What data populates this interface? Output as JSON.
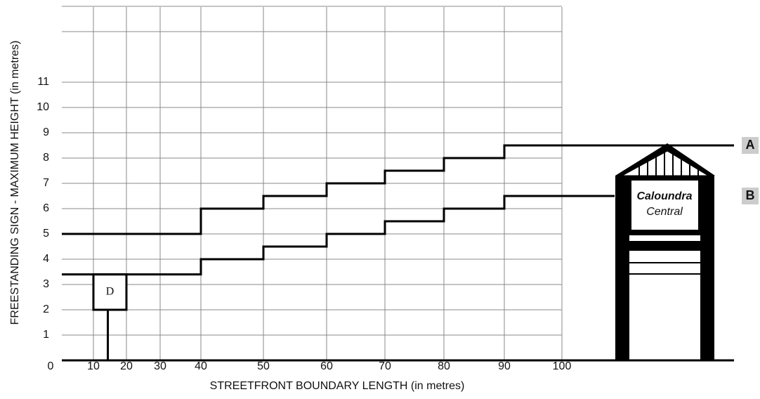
{
  "chart_data": {
    "type": "step",
    "x_label": "STREETFRONT BOUNDARY LENGTH (in metres)",
    "y_label": "FREESTANDING SIGN - MAXIMUM HEIGHT (in metres)",
    "x": [
      0,
      40,
      50,
      60,
      70,
      80,
      90
    ],
    "series": [
      {
        "name": "A",
        "color": "#000000",
        "values": [
          5,
          6,
          6.5,
          7,
          7.5,
          8,
          8.5
        ]
      },
      {
        "name": "B",
        "color": "#000000",
        "values": [
          3.4,
          4,
          4.5,
          5,
          5.5,
          6,
          6.5
        ]
      }
    ],
    "xlim": [
      0,
      100
    ],
    "xticks": [
      10,
      20,
      30,
      40,
      50,
      60,
      70,
      80,
      90,
      100
    ],
    "ylim": [
      0,
      13
    ],
    "yticks": [
      0,
      1,
      2,
      3,
      4,
      5,
      6,
      7,
      8,
      9,
      10,
      11
    ],
    "grid": true,
    "annotations": {
      "box_label": "D",
      "sign_line1": "Caloundra",
      "sign_line2": "Central"
    }
  }
}
